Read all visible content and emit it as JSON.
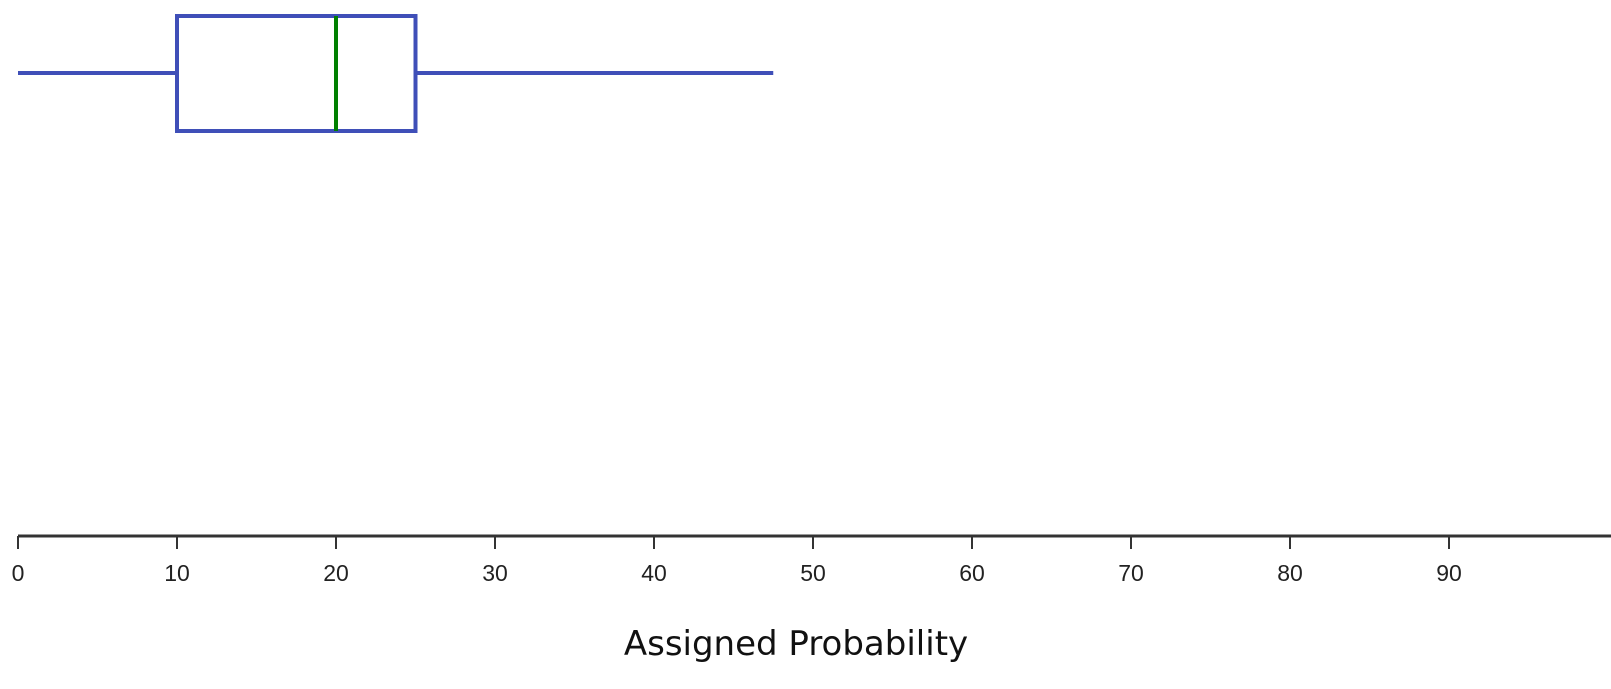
{
  "chart_data": {
    "type": "boxplot",
    "title": "",
    "xlabel": "Assigned Probability",
    "ylabel": "",
    "xlim": [
      0,
      100
    ],
    "xticks": [
      0,
      10,
      20,
      30,
      40,
      50,
      60,
      70,
      80,
      90
    ],
    "xtick_labels": [
      "0",
      "10",
      "20",
      "30",
      "40",
      "50",
      "60",
      "70",
      "80",
      "90"
    ],
    "grid": false,
    "legend": "none",
    "orientation": "horizontal",
    "series": [
      {
        "min": 0,
        "q1": 10,
        "median": 20,
        "q3": 25,
        "max": 47.5
      }
    ],
    "colors": {
      "box": "#3f4fb8",
      "median": "#008000",
      "axis": "#333333"
    }
  }
}
